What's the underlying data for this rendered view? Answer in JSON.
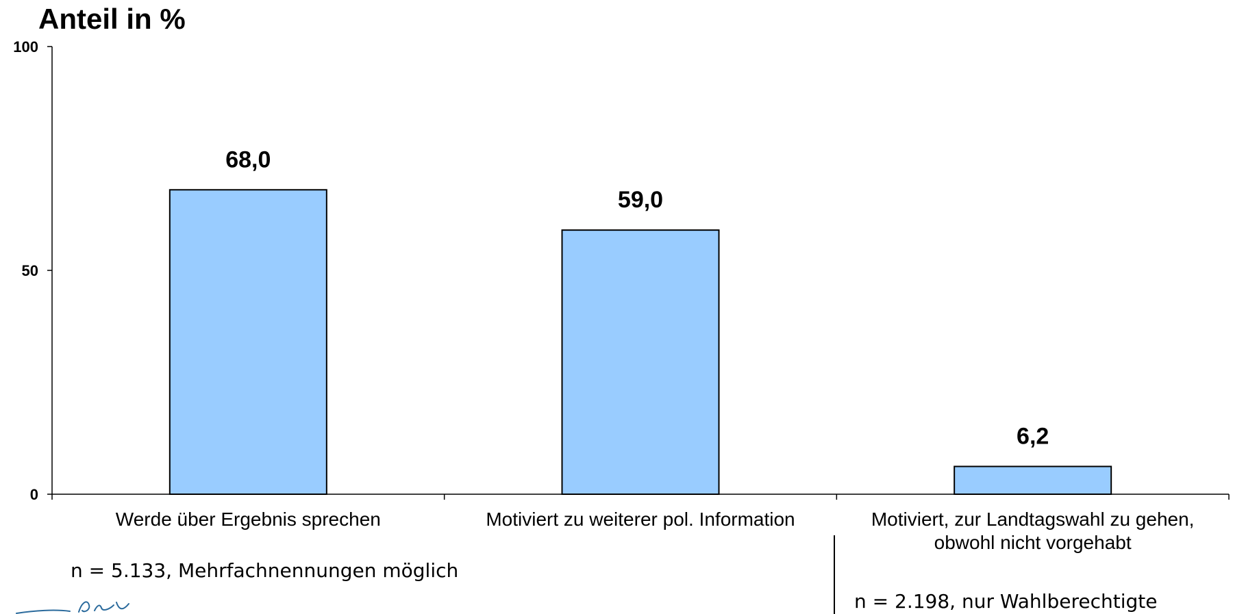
{
  "chart_data": {
    "type": "bar",
    "title": "Anteil in %",
    "categories": [
      [
        "Werde über Ergebnis sprechen"
      ],
      [
        "Motiviert zu weiterer pol. Information"
      ],
      [
        "Motiviert, zur Landtagswahl zu gehen,",
        "obwohl nicht vorgehabt"
      ]
    ],
    "values": [
      68.0,
      59.0,
      6.2
    ],
    "value_labels": [
      "68,0",
      "59,0",
      "6,2"
    ],
    "ylim": [
      0,
      100
    ],
    "yticks": [
      0,
      50,
      100
    ],
    "ytick_labels": [
      "0",
      "50",
      "100"
    ],
    "grid": false,
    "bar_color": "#99ccff",
    "bar_edge_color": "#000000"
  },
  "notes": {
    "left": "n = 5.133, Mehrfachnennungen möglich",
    "right": "n = 2.198, nur Wahlberechtigte"
  },
  "logo": {
    "icon": "signature-logo-icon",
    "color": "#2a6a9c"
  }
}
